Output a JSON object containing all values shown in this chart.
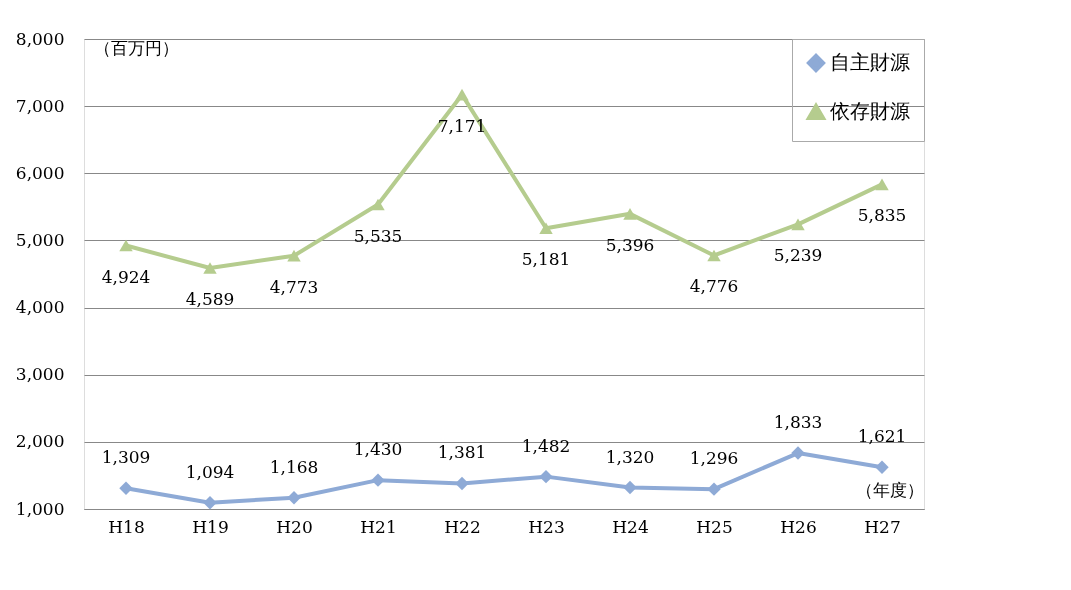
{
  "chart_data": {
    "type": "line",
    "ylabel": "（百万円）",
    "xlabel": "（年度）",
    "categories": [
      "H18",
      "H19",
      "H20",
      "H21",
      "H22",
      "H23",
      "H24",
      "H25",
      "H26",
      "H27"
    ],
    "series": [
      {
        "name": "自主財源",
        "color": "#8eaad6",
        "marker": "diamond",
        "values": [
          1309,
          1094,
          1168,
          1430,
          1381,
          1482,
          1320,
          1296,
          1833,
          1621
        ],
        "value_labels": [
          "1,309",
          "1,094",
          "1,168",
          "1,430",
          "1,381",
          "1,482",
          "1,320",
          "1,296",
          "1,833",
          "1,621"
        ]
      },
      {
        "name": "依存財源",
        "color": "#b5cc8e",
        "marker": "triangle",
        "values": [
          4924,
          4589,
          4773,
          5535,
          7171,
          5181,
          5396,
          4776,
          5239,
          5835
        ],
        "value_labels": [
          "4,924",
          "4,589",
          "4,773",
          "5,535",
          "7,171",
          "5,181",
          "5,396",
          "4,776",
          "5,239",
          "5,835"
        ]
      }
    ],
    "ylim": [
      1000,
      8000
    ],
    "yticks": [
      {
        "value": 1000,
        "label": "1,000"
      },
      {
        "value": 2000,
        "label": "2,000"
      },
      {
        "value": 3000,
        "label": "3,000"
      },
      {
        "value": 4000,
        "label": "4,000"
      },
      {
        "value": 5000,
        "label": "5,000"
      },
      {
        "value": 6000,
        "label": "6,000"
      },
      {
        "value": 7000,
        "label": "7,000"
      },
      {
        "value": 8000,
        "label": "8,000"
      }
    ],
    "grid": "y",
    "legend": "top right",
    "line_style": "solid"
  }
}
